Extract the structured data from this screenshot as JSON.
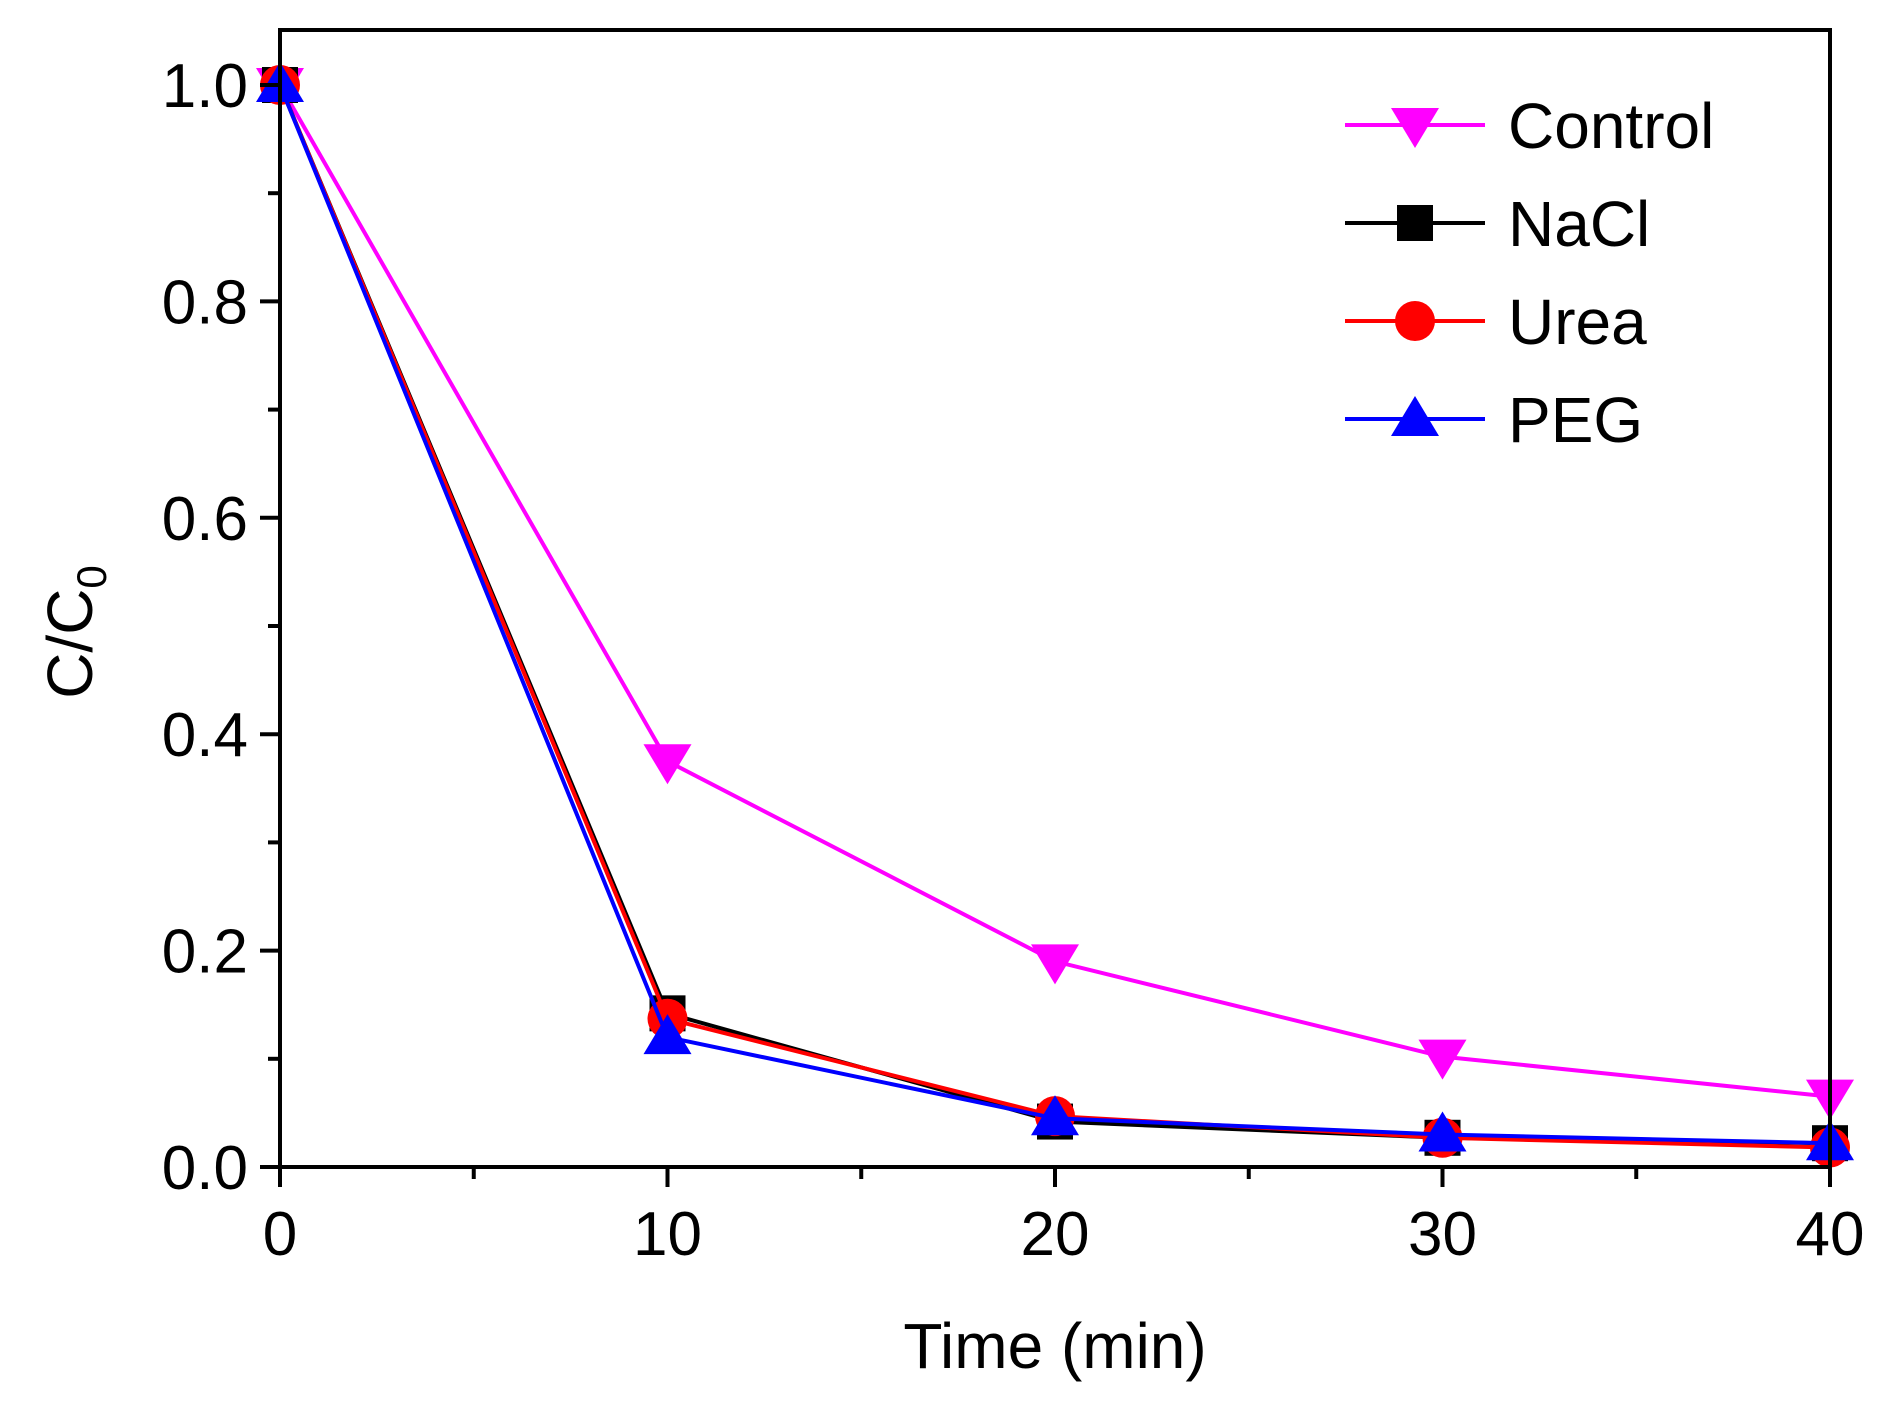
{
  "chart_data": {
    "type": "line",
    "title": "",
    "xlabel": "Time (min)",
    "ylabel_main": "C/C",
    "ylabel_sub": "0",
    "xlim": [
      0,
      40
    ],
    "ylim": [
      0,
      1.05
    ],
    "x": [
      0,
      10,
      20,
      30,
      40
    ],
    "x_ticks": [
      0,
      10,
      20,
      30,
      40
    ],
    "x_tick_labels": [
      "0",
      "10",
      "20",
      "30",
      "40"
    ],
    "y_ticks": [
      0,
      0.2,
      0.4,
      0.6,
      0.8,
      1.0
    ],
    "y_tick_labels": [
      "0.0",
      "0.2",
      "0.4",
      "0.6",
      "0.8",
      "1.0"
    ],
    "grid": false,
    "legend_position": "top-right",
    "series": [
      {
        "name": "Control",
        "color": "#FF00FF",
        "marker": "triangle-down",
        "values": [
          1.0,
          0.375,
          0.19,
          0.102,
          0.065
        ]
      },
      {
        "name": "NaCl",
        "color": "#000000",
        "marker": "square",
        "values": [
          1.0,
          0.142,
          0.042,
          0.027,
          0.022
        ]
      },
      {
        "name": "Urea",
        "color": "#FF0000",
        "marker": "circle",
        "values": [
          1.0,
          0.137,
          0.047,
          0.027,
          0.018
        ]
      },
      {
        "name": "PEG",
        "color": "#0000FF",
        "marker": "triangle-up",
        "values": [
          1.0,
          0.12,
          0.045,
          0.03,
          0.022
        ]
      }
    ]
  }
}
